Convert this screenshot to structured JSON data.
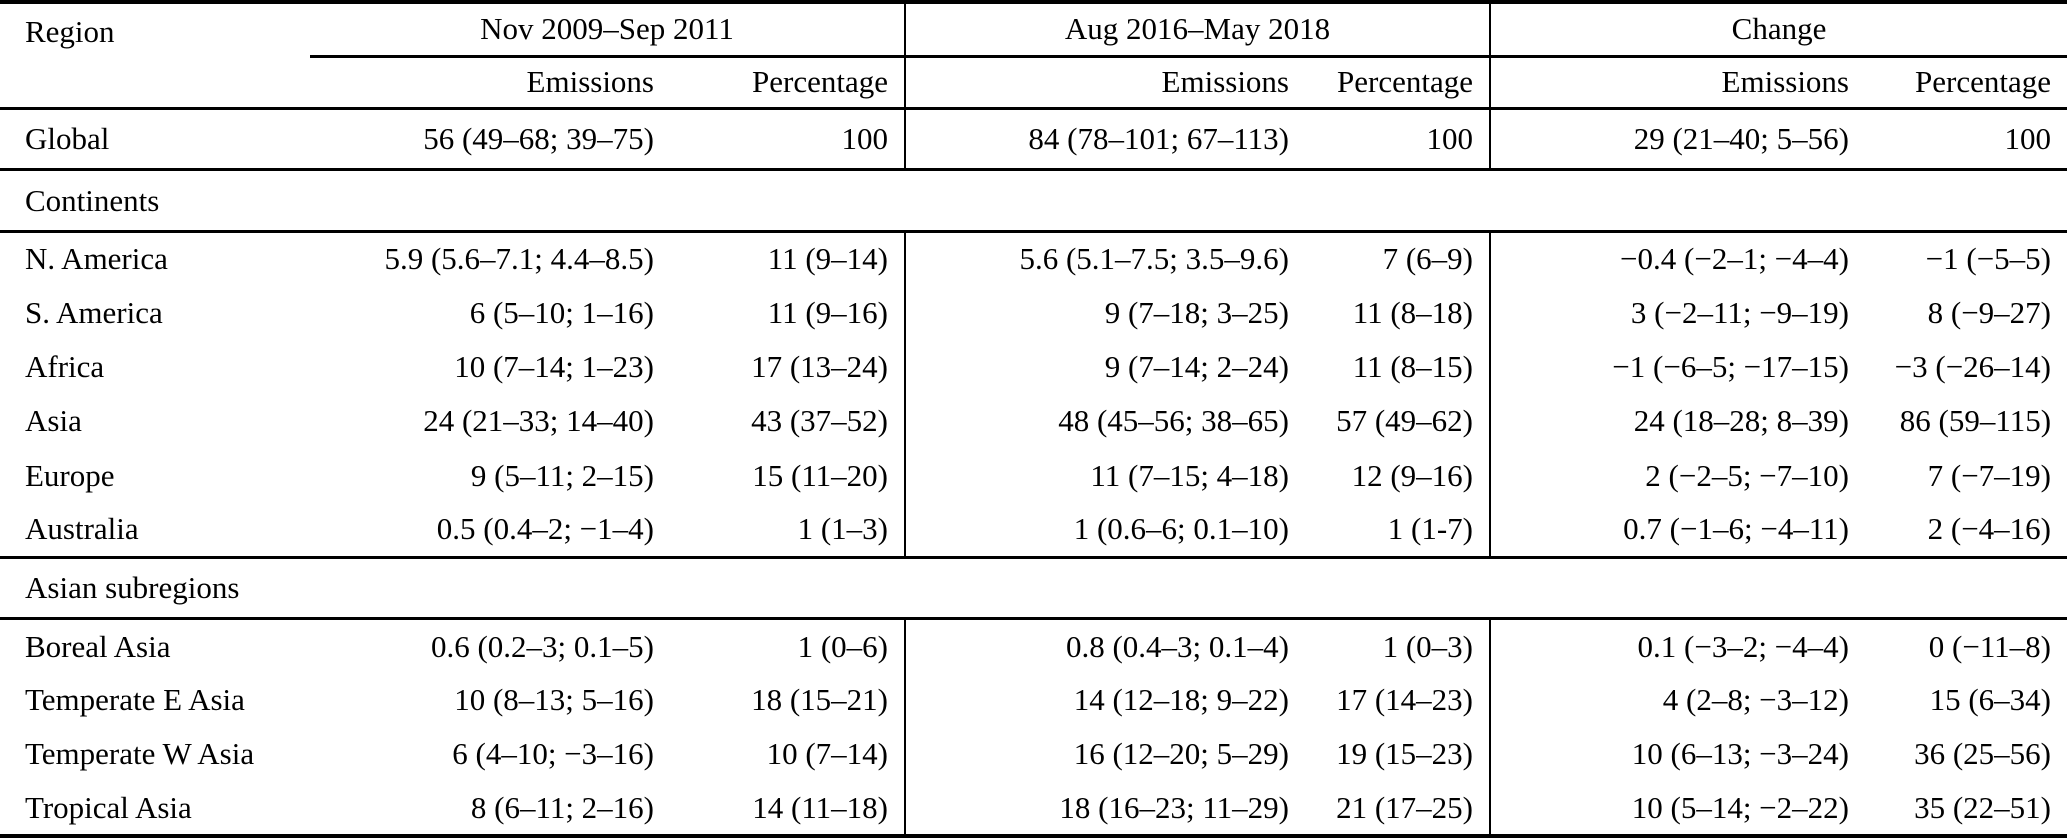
{
  "header": {
    "region": "Region",
    "groups": [
      {
        "label": "Nov 2009–Sep 2011"
      },
      {
        "label": "Aug 2016–May 2018"
      },
      {
        "label": "Change"
      }
    ],
    "sub": {
      "emissions": "Emissions",
      "percentage": "Percentage"
    }
  },
  "rows": [
    {
      "region": "Global",
      "cells": [
        "56 (49–68; 39–75)",
        "100",
        "84 (78–101; 67–113)",
        "100",
        "29 (21–40; 5–56)",
        "100"
      ]
    },
    {
      "section": "Continents"
    },
    {
      "region": "N. America",
      "cells": [
        "5.9 (5.6–7.1; 4.4–8.5)",
        "11 (9–14)",
        "5.6 (5.1–7.5; 3.5–9.6)",
        "7 (6–9)",
        "−0.4 (−2–1; −4–4)",
        "−1 (−5–5)"
      ]
    },
    {
      "region": "S. America",
      "cells": [
        "6 (5–10; 1–16)",
        "11 (9–16)",
        "9 (7–18; 3–25)",
        "11 (8–18)",
        "3 (−2–11; −9–19)",
        "8 (−9–27)"
      ]
    },
    {
      "region": "Africa",
      "cells": [
        "10 (7–14; 1–23)",
        "17 (13–24)",
        "9 (7–14; 2–24)",
        "11 (8–15)",
        "−1 (−6–5; −17–15)",
        "−3 (−26–14)"
      ]
    },
    {
      "region": "Asia",
      "cells": [
        "24 (21–33; 14–40)",
        "43 (37–52)",
        "48 (45–56; 38–65)",
        "57 (49–62)",
        "24 (18–28; 8–39)",
        "86 (59–115)"
      ]
    },
    {
      "region": "Europe",
      "cells": [
        "9 (5–11; 2–15)",
        "15 (11–20)",
        "11 (7–15; 4–18)",
        "12 (9–16)",
        "2 (−2–5; −7–10)",
        "7 (−7–19)"
      ]
    },
    {
      "region": "Australia",
      "cells": [
        "0.5 (0.4–2; −1–4)",
        "1 (1–3)",
        "1 (0.6–6; 0.1–10)",
        "1 (1-7)",
        "0.7 (−1–6; −4–11)",
        "2 (−4–16)"
      ]
    },
    {
      "section": "Asian subregions"
    },
    {
      "region": "Boreal Asia",
      "cells": [
        "0.6 (0.2–3; 0.1–5)",
        "1 (0–6)",
        "0.8 (0.4–3; 0.1–4)",
        "1 (0–3)",
        "0.1 (−3–2; −4–4)",
        "0 (−11–8)"
      ]
    },
    {
      "region": "Temperate E Asia",
      "cells": [
        "10 (8–13; 5–16)",
        "18 (15–21)",
        "14 (12–18; 9–22)",
        "17 (14–23)",
        "4 (2–8; −3–12)",
        "15 (6–34)"
      ]
    },
    {
      "region": "Temperate W Asia",
      "cells": [
        "6 (4–10; −3–16)",
        "10 (7–14)",
        "16 (12–20; 5–29)",
        "19 (15–23)",
        "10 (6–13; −3–24)",
        "36 (25–56)"
      ]
    },
    {
      "region": "Tropical Asia",
      "cells": [
        "8 (6–11; 2–16)",
        "14 (11–18)",
        "18 (16–23; 11–29)",
        "21 (17–25)",
        "10 (5–14; −2–22)",
        "35 (22–51)"
      ]
    }
  ]
}
